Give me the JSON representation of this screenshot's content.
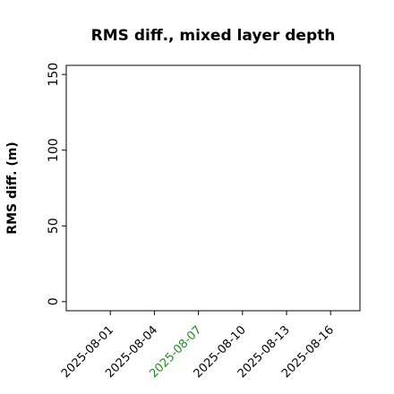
{
  "chart_data": {
    "type": "line",
    "title": "RMS diff., mixed layer depth",
    "y_label": "RMS diff. (m)",
    "xlim": [
      "2025-07-29",
      "2025-08-18"
    ],
    "xticks": [
      "2025-08-01",
      "2025-08-04",
      "2025-08-07",
      "2025-08-10",
      "2025-08-13",
      "2025-08-16"
    ],
    "xtick_colors": [
      "#000000",
      "#000000",
      "#228b22",
      "#000000",
      "#000000",
      "#000000"
    ],
    "ylim": [
      -6,
      156
    ],
    "yticks": [
      0,
      50,
      100,
      150
    ],
    "series": []
  }
}
